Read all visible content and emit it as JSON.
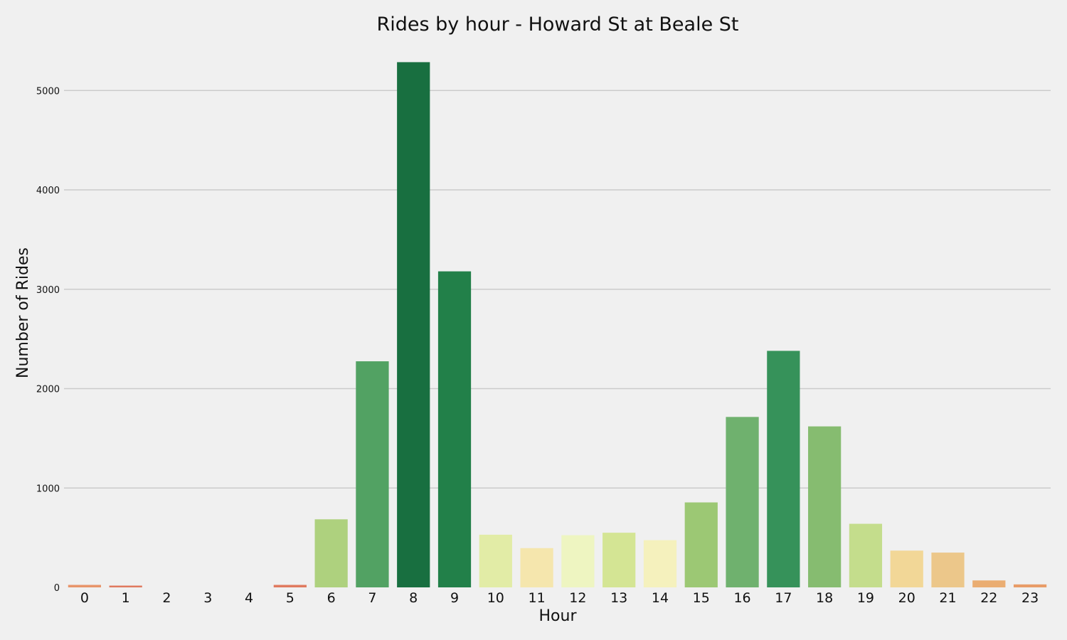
{
  "chart_data": {
    "type": "bar",
    "title": "Rides by hour - Howard St at Beale St",
    "xlabel": "Hour",
    "ylabel": "Number of Rides",
    "categories": [
      "0",
      "1",
      "2",
      "3",
      "4",
      "5",
      "6",
      "7",
      "8",
      "9",
      "10",
      "11",
      "12",
      "13",
      "14",
      "15",
      "16",
      "17",
      "18",
      "19",
      "20",
      "21",
      "22",
      "23"
    ],
    "values": [
      25,
      8,
      0,
      0,
      0,
      25,
      685,
      2275,
      5285,
      3180,
      530,
      395,
      525,
      550,
      475,
      855,
      1715,
      2380,
      1620,
      640,
      370,
      350,
      70,
      30
    ],
    "colors": [
      "#e8956a",
      "#e07a5f",
      "#e07a5f",
      "#e07a5f",
      "#e07a5f",
      "#e07a5f",
      "#aed17e",
      "#52a263",
      "#186f40",
      "#228049",
      "#e2eca6",
      "#f5e6ad",
      "#eef5c1",
      "#d4e594",
      "#f5f1bd",
      "#9cc874",
      "#6fb16e",
      "#36925a",
      "#86bc70",
      "#c4dd8c",
      "#f2d797",
      "#ecc78a",
      "#eaad72",
      "#e89c68"
    ],
    "yticks": [
      0,
      1000,
      2000,
      3000,
      4000,
      5000
    ],
    "ylim": [
      0,
      5550
    ],
    "grid": true,
    "legend": "none"
  }
}
